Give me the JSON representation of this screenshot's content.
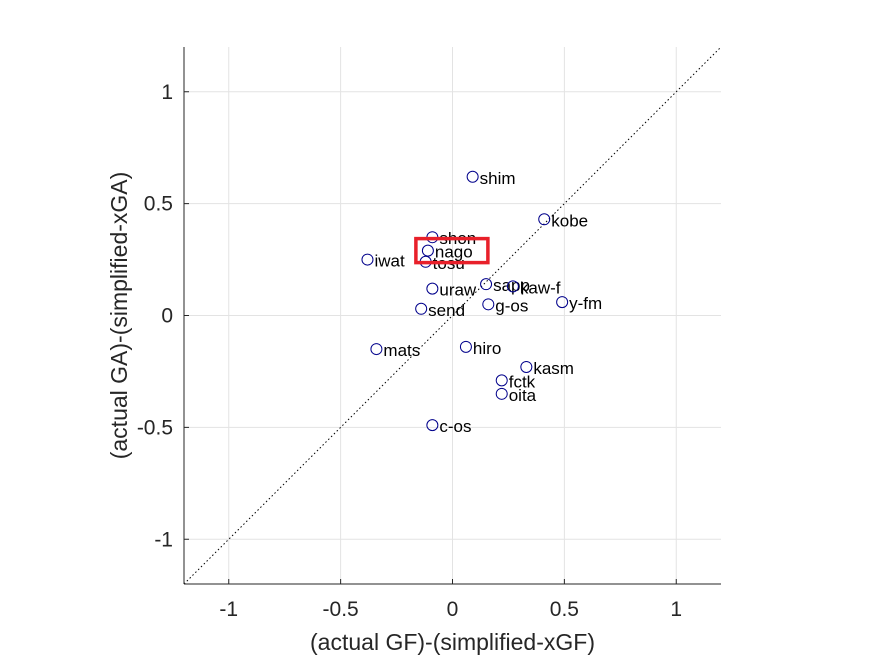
{
  "chart_data": {
    "type": "scatter",
    "title": "",
    "xlabel": "(actual GF)-(simplified-xGF)",
    "ylabel": "(actual GA)-(simplified-xGA)",
    "xlim": [
      -1.2,
      1.2
    ],
    "ylim": [
      -1.2,
      1.2
    ],
    "xticks": [
      -1,
      -0.5,
      0,
      0.5,
      1
    ],
    "yticks": [
      -1,
      -0.5,
      0,
      0.5,
      1
    ],
    "xtick_labels": [
      "-1",
      "-0.5",
      "0",
      "0.5",
      "1"
    ],
    "ytick_labels": [
      "-1",
      "-0.5",
      "0",
      "0.5",
      "1"
    ],
    "grid": true,
    "reference_line": "y = x (dotted)",
    "marker_color": "#00008b",
    "highlight_color": "#e8202a",
    "highlight": "nago",
    "points": [
      {
        "label": "shim",
        "x": 0.09,
        "y": 0.62
      },
      {
        "label": "kobe",
        "x": 0.41,
        "y": 0.43
      },
      {
        "label": "shon",
        "x": -0.09,
        "y": 0.35
      },
      {
        "label": "nago",
        "x": -0.11,
        "y": 0.29
      },
      {
        "label": "iwat",
        "x": -0.38,
        "y": 0.25
      },
      {
        "label": "tosu",
        "x": -0.12,
        "y": 0.24
      },
      {
        "label": "sapp",
        "x": 0.15,
        "y": 0.14
      },
      {
        "label": "kaw-f",
        "x": 0.27,
        "y": 0.13
      },
      {
        "label": "uraw",
        "x": -0.09,
        "y": 0.12
      },
      {
        "label": "y-fm",
        "x": 0.49,
        "y": 0.06
      },
      {
        "label": "g-os",
        "x": 0.16,
        "y": 0.05
      },
      {
        "label": "send",
        "x": -0.14,
        "y": 0.03
      },
      {
        "label": "mats",
        "x": -0.34,
        "y": -0.15
      },
      {
        "label": "hiro",
        "x": 0.06,
        "y": -0.14
      },
      {
        "label": "kasm",
        "x": 0.33,
        "y": -0.23
      },
      {
        "label": "fctk",
        "x": 0.22,
        "y": -0.29
      },
      {
        "label": "oita",
        "x": 0.22,
        "y": -0.35
      },
      {
        "label": "c-os",
        "x": -0.09,
        "y": -0.49
      }
    ]
  }
}
